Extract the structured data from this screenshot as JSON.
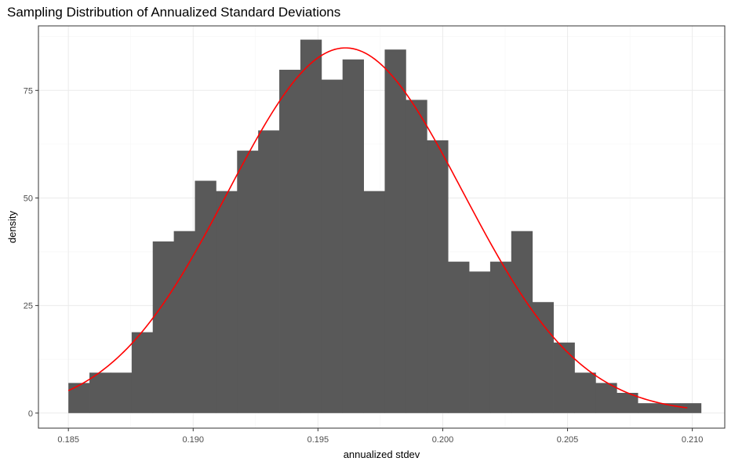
{
  "chart_data": {
    "type": "histogram",
    "title": "Sampling Distribution of Annualized Standard Deviations",
    "xlabel": "annualized stdev",
    "ylabel": "density",
    "xlim": [
      0.1838,
      0.2113
    ],
    "ylim": [
      -3.5,
      90
    ],
    "x_ticks": [
      0.185,
      0.19,
      0.195,
      0.2,
      0.205,
      0.21
    ],
    "x_tick_labels": [
      "0.185",
      "0.190",
      "0.195",
      "0.200",
      "0.205",
      "0.210"
    ],
    "y_ticks": [
      0,
      25,
      50,
      75
    ],
    "y_tick_labels": [
      "0",
      "25",
      "50",
      "75"
    ],
    "grid": true,
    "bins": {
      "start": 0.185,
      "width": 0.000845,
      "values": [
        7.0,
        9.4,
        9.4,
        18.8,
        39.9,
        42.3,
        54.0,
        51.6,
        61.0,
        65.7,
        79.8,
        86.8,
        77.5,
        82.2,
        51.6,
        84.5,
        72.8,
        63.4,
        35.2,
        32.9,
        35.2,
        42.3,
        25.8,
        16.4,
        9.4,
        7.0,
        4.7,
        2.3,
        2.3,
        2.3
      ],
      "fill": "#595959"
    },
    "density_curve": {
      "type": "normal",
      "mean": 0.1961,
      "sd": 0.0047,
      "x_range": [
        0.185,
        0.2098
      ],
      "color": "#ff0000"
    },
    "colors": {
      "panel_border": "#333333",
      "grid_major": "#ebebeb",
      "grid_minor": "#f5f5f5"
    }
  }
}
